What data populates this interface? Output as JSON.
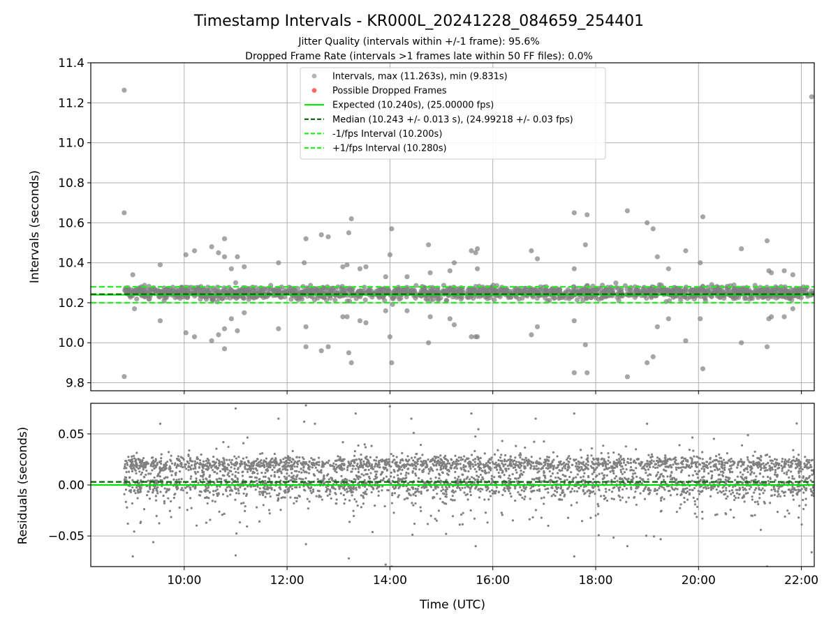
{
  "title": "Timestamp Intervals - KR000L_20241228_084659_254401",
  "subtitle_lines": [
    "Jitter Quality (intervals within +/-1 frame): 95.6%",
    "Dropped Frame Rate (intervals >1 frames late within 50 FF files): 0.0%"
  ],
  "colors": {
    "points": "#808080",
    "dropped": "#ff0000",
    "expected": "#00e000",
    "median": "#006400",
    "fps_band": "#22ee22",
    "grid": "#b0b0b0"
  },
  "chart_data": [
    {
      "type": "scatter",
      "ylabel": "Intervals (seconds)",
      "x_kind": "time_of_day",
      "xlim": [
        "08:11",
        "22:15"
      ],
      "ylim": [
        9.76,
        11.4
      ],
      "yticks": [
        "9.8",
        "10.0",
        "10.2",
        "10.4",
        "10.6",
        "10.8",
        "11.0",
        "11.2",
        "11.4"
      ],
      "grid": true,
      "legend_placement": "upper center",
      "legend": [
        {
          "label": "Intervals, max (11.263s), min (9.831s)",
          "marker": "point",
          "color": "#808080"
        },
        {
          "label": "Possible Dropped Frames",
          "marker": "point",
          "color": "#ff0000"
        },
        {
          "label": "Expected (10.240s), (25.00000 fps)",
          "marker": "solid",
          "color": "#00e000"
        },
        {
          "label": "Median (10.243 +/- 0.013 s), (24.99218 +/- 0.03 fps)",
          "marker": "dashed",
          "color": "#006400"
        },
        {
          "label": "-1/fps Interval (10.200s)",
          "marker": "dashed",
          "color": "#22ee22"
        },
        {
          "label": "+1/fps Interval (10.280s)",
          "marker": "dashed",
          "color": "#22ee22"
        }
      ],
      "hlines": [
        {
          "name": "Expected",
          "y": 10.24,
          "style": "solid"
        },
        {
          "name": "Median",
          "y": 10.243,
          "style": "dashed"
        },
        {
          "name": "-1/fps Interval",
          "y": 10.2,
          "style": "dashed"
        },
        {
          "name": "+1/fps Interval",
          "y": 10.28,
          "style": "dashed"
        }
      ],
      "series": [
        {
          "name": "Intervals",
          "points": [
            [
              "08:50",
              11.263
            ],
            [
              "08:50",
              9.831
            ],
            [
              "08:50",
              10.65
            ],
            [
              "09:00",
              10.34
            ],
            [
              "09:02",
              10.17
            ],
            [
              "09:10",
              10.28
            ],
            [
              "09:32",
              10.11
            ],
            [
              "09:32",
              10.39
            ],
            [
              "10:02",
              10.44
            ],
            [
              "10:02",
              10.05
            ],
            [
              "10:12",
              10.46
            ],
            [
              "10:12",
              10.03
            ],
            [
              "10:32",
              10.01
            ],
            [
              "10:32",
              10.48
            ],
            [
              "10:40",
              10.45
            ],
            [
              "10:40",
              10.04
            ],
            [
              "10:47",
              10.07
            ],
            [
              "10:47",
              9.97
            ],
            [
              "10:47",
              10.52
            ],
            [
              "10:47",
              10.43
            ],
            [
              "10:55",
              10.37
            ],
            [
              "10:55",
              10.12
            ],
            [
              "11:00",
              10.3
            ],
            [
              "11:02",
              10.43
            ],
            [
              "11:02",
              10.06
            ],
            [
              "11:10",
              10.38
            ],
            [
              "11:10",
              10.15
            ],
            [
              "11:50",
              10.4
            ],
            [
              "11:50",
              10.07
            ],
            [
              "12:20",
              10.4
            ],
            [
              "12:22",
              10.52
            ],
            [
              "12:22",
              10.08
            ],
            [
              "12:22",
              9.98
            ],
            [
              "12:40",
              10.54
            ],
            [
              "12:40",
              9.96
            ],
            [
              "12:48",
              10.53
            ],
            [
              "12:48",
              9.98
            ],
            [
              "13:05",
              10.38
            ],
            [
              "13:05",
              10.13
            ],
            [
              "13:10",
              10.39
            ],
            [
              "13:10",
              10.13
            ],
            [
              "13:12",
              10.55
            ],
            [
              "13:12",
              9.95
            ],
            [
              "13:15",
              10.62
            ],
            [
              "13:15",
              9.9
            ],
            [
              "13:25",
              10.37
            ],
            [
              "13:25",
              10.11
            ],
            [
              "13:32",
              10.38
            ],
            [
              "13:32",
              10.1
            ],
            [
              "13:55",
              10.33
            ],
            [
              "13:55",
              10.16
            ],
            [
              "14:00",
              10.44
            ],
            [
              "14:00",
              10.03
            ],
            [
              "14:02",
              10.57
            ],
            [
              "14:02",
              9.9
            ],
            [
              "14:20",
              10.33
            ],
            [
              "14:20",
              10.16
            ],
            [
              "14:45",
              10.49
            ],
            [
              "14:45",
              10.0
            ],
            [
              "14:47",
              10.35
            ],
            [
              "14:47",
              10.13
            ],
            [
              "15:10",
              10.36
            ],
            [
              "15:10",
              10.12
            ],
            [
              "15:15",
              10.4
            ],
            [
              "15:15",
              10.09
            ],
            [
              "15:35",
              10.46
            ],
            [
              "15:35",
              10.03
            ],
            [
              "15:40",
              10.45
            ],
            [
              "15:40",
              10.03
            ],
            [
              "15:42",
              10.47
            ],
            [
              "15:42",
              10.03
            ],
            [
              "15:42",
              10.37
            ],
            [
              "16:45",
              10.46
            ],
            [
              "16:45",
              10.04
            ],
            [
              "16:52",
              10.42
            ],
            [
              "16:52",
              10.08
            ],
            [
              "17:35",
              10.65
            ],
            [
              "17:35",
              9.85
            ],
            [
              "17:35",
              10.37
            ],
            [
              "17:35",
              10.11
            ],
            [
              "17:50",
              10.64
            ],
            [
              "17:50",
              9.85
            ],
            [
              "17:48",
              10.49
            ],
            [
              "17:48",
              9.99
            ],
            [
              "18:37",
              10.66
            ],
            [
              "18:37",
              9.83
            ],
            [
              "19:00",
              10.6
            ],
            [
              "19:00",
              9.9
            ],
            [
              "19:07",
              10.57
            ],
            [
              "19:07",
              9.93
            ],
            [
              "19:12",
              10.43
            ],
            [
              "19:12",
              10.08
            ],
            [
              "19:25",
              10.37
            ],
            [
              "19:25",
              10.12
            ],
            [
              "19:45",
              10.46
            ],
            [
              "19:45",
              10.01
            ],
            [
              "20:02",
              10.4
            ],
            [
              "20:02",
              10.12
            ],
            [
              "20:05",
              10.63
            ],
            [
              "20:05",
              9.87
            ],
            [
              "20:50",
              10.47
            ],
            [
              "20:50",
              10.0
            ],
            [
              "21:20",
              10.51
            ],
            [
              "21:20",
              9.98
            ],
            [
              "21:22",
              10.36
            ],
            [
              "21:22",
              10.12
            ],
            [
              "21:25",
              10.35
            ],
            [
              "21:25",
              10.13
            ],
            [
              "21:30",
              10.28
            ],
            [
              "21:40",
              10.36
            ],
            [
              "21:40",
              10.13
            ],
            [
              "21:50",
              10.34
            ],
            [
              "21:50",
              10.17
            ],
            [
              "22:12",
              11.23
            ]
          ]
        }
      ]
    },
    {
      "type": "scatter",
      "ylabel": "Residuals (seconds)",
      "xlabel": "Time (UTC)",
      "x_kind": "time_of_day",
      "xlim": [
        "08:11",
        "22:15"
      ],
      "xticks": [
        "10:00",
        "12:00",
        "14:00",
        "16:00",
        "18:00",
        "20:00",
        "22:00"
      ],
      "ylim": [
        -0.08,
        0.08
      ],
      "yticks": [
        "−0.05",
        "0.00",
        "0.05"
      ],
      "grid": true,
      "hlines": [
        {
          "name": "Expected",
          "y": 0.0,
          "style": "solid"
        },
        {
          "name": "Median",
          "y": 0.003,
          "style": "dashed"
        }
      ],
      "series": [
        {
          "name": "Residuals",
          "points": [
            [
              "09:00",
              -0.07
            ],
            [
              "09:32",
              0.06
            ],
            [
              "11:00",
              0.075
            ],
            [
              "11:00",
              -0.069
            ],
            [
              "11:50",
              0.065
            ],
            [
              "12:20",
              0.062
            ],
            [
              "12:22",
              0.078
            ],
            [
              "12:22",
              -0.058
            ],
            [
              "13:12",
              -0.072
            ],
            [
              "13:55",
              -0.078
            ],
            [
              "14:00",
              0.077
            ],
            [
              "14:02",
              -0.08
            ],
            [
              "15:35",
              0.07
            ],
            [
              "15:40",
              -0.06
            ],
            [
              "17:35",
              0.07
            ],
            [
              "17:35",
              -0.07
            ],
            [
              "18:37",
              -0.06
            ],
            [
              "19:00",
              0.06
            ],
            [
              "21:20",
              -0.08
            ],
            [
              "22:12",
              -0.066
            ],
            [
              "13:20",
              0.07
            ],
            [
              "14:25",
              0.065
            ],
            [
              "16:50",
              0.065
            ]
          ]
        }
      ]
    }
  ]
}
